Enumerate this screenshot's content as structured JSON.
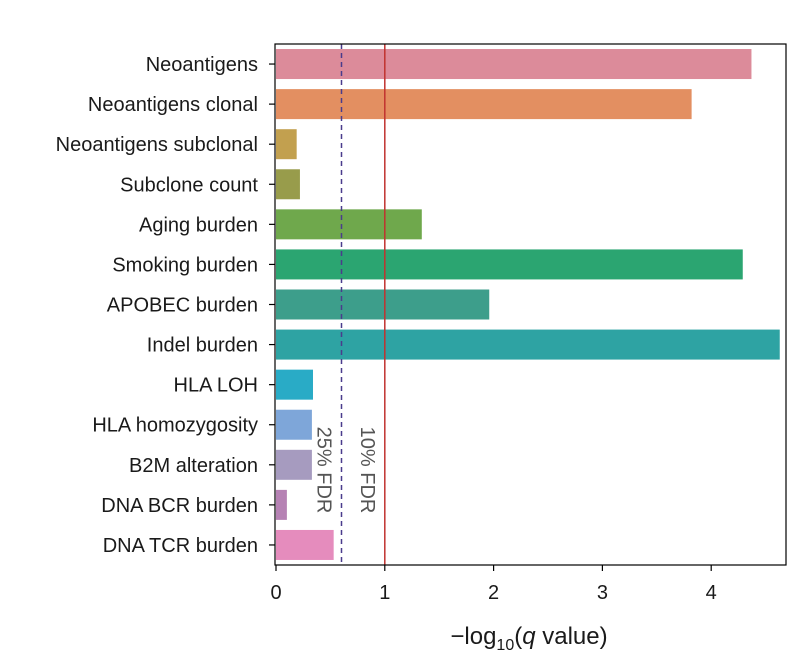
{
  "chart_data": {
    "type": "bar",
    "orientation": "horizontal",
    "categories": [
      "Neoantigens",
      "Neoantigens clonal",
      "Neoantigens subclonal",
      "Subclone count",
      "Aging burden",
      "Smoking burden",
      "APOBEC burden",
      "Indel burden",
      "HLA LOH",
      "HLA homozygosity",
      "B2M alteration",
      "DNA BCR burden",
      "DNA TCR burden"
    ],
    "values": [
      4.37,
      3.82,
      0.19,
      0.22,
      1.34,
      4.29,
      1.96,
      4.63,
      0.34,
      0.33,
      0.33,
      0.1,
      0.53
    ],
    "colors": [
      "#dc8b9a",
      "#e38f61",
      "#c2a04f",
      "#989c4b",
      "#6fa84c",
      "#2ba571",
      "#3d9e8b",
      "#2ea3a3",
      "#29abc6",
      "#7ea6d9",
      "#a69bbf",
      "#b682b4",
      "#e58cbd"
    ],
    "xlabel": {
      "prefix": "−log",
      "subscript": "10",
      "open": "(",
      "italic": "q",
      "rest": " value)"
    },
    "xlim": [
      0,
      4.72
    ],
    "xticks": [
      0,
      1,
      2,
      3,
      4
    ],
    "reference_lines": [
      {
        "value": 1.0,
        "label": "10% FDR",
        "style": "solid",
        "color": "#c0322f"
      },
      {
        "value": 0.602,
        "label": "25% FDR",
        "style": "dashed",
        "color": "#4a3c8c"
      }
    ],
    "grid": false
  }
}
